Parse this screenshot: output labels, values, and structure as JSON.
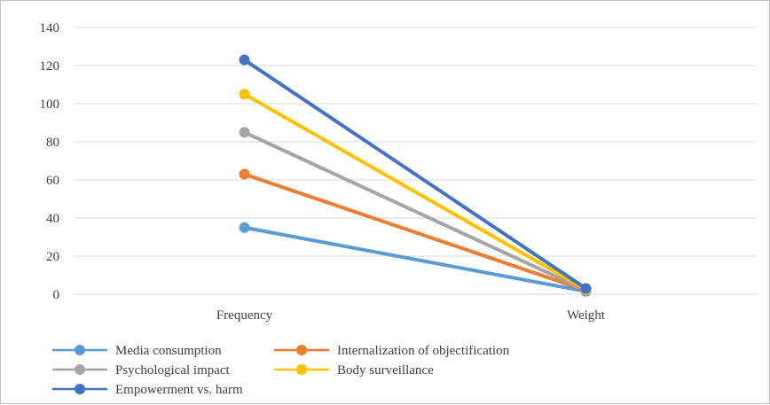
{
  "chart_data": {
    "type": "line",
    "categories": [
      "Frequency",
      "Weight"
    ],
    "ylim": [
      0,
      140
    ],
    "yticks": [
      0,
      20,
      40,
      60,
      80,
      100,
      120,
      140
    ],
    "grid": true,
    "legend_position": "bottom",
    "series": [
      {
        "name": "Media consumption",
        "values": [
          35,
          1.5
        ],
        "color": "#5b9bd5"
      },
      {
        "name": "Internalization of objectification",
        "values": [
          63,
          2.0
        ],
        "color": "#ed7d31"
      },
      {
        "name": "Psychological impact",
        "values": [
          85,
          2.0
        ],
        "color": "#a5a5a5"
      },
      {
        "name": "Body surveillance",
        "values": [
          105,
          2.5
        ],
        "color": "#ffc000"
      },
      {
        "name": "Empowerment vs. harm",
        "values": [
          123,
          3.0
        ],
        "color": "#4472c4"
      }
    ],
    "legend_order": [
      0,
      1,
      2,
      3,
      4
    ]
  }
}
